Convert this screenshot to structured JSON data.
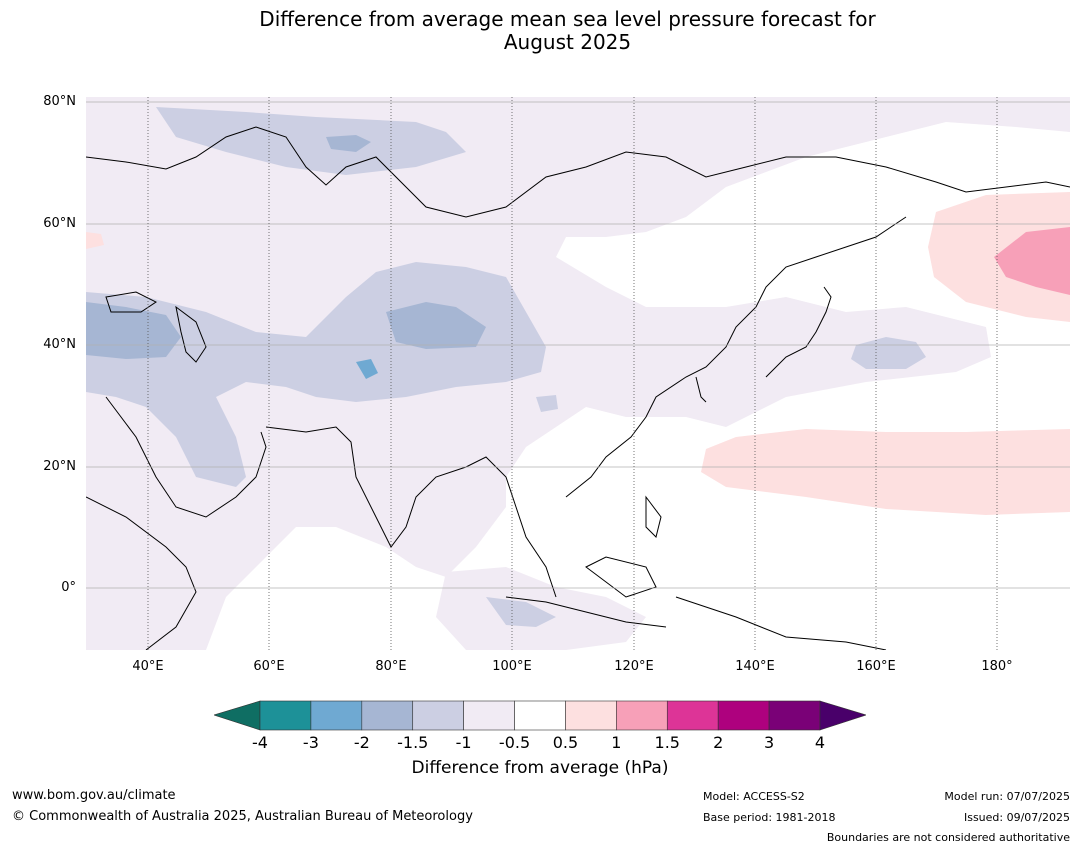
{
  "title": {
    "line1": "Difference from average mean sea level pressure forecast for",
    "line2": "August 2025"
  },
  "map": {
    "lat_labels": [
      "80°N",
      "60°N",
      "40°N",
      "20°N",
      "0°"
    ],
    "lon_labels": [
      "40°E",
      "60°E",
      "80°E",
      "100°E",
      "120°E",
      "140°E",
      "160°E",
      "180°"
    ],
    "extent": {
      "lon_min": 30,
      "lon_max": 192,
      "lat_min": -10,
      "lat_max": 81
    }
  },
  "colorbar": {
    "ticks": [
      "-4",
      "-3",
      "-2",
      "-1.5",
      "-1",
      "-0.5",
      "0.5",
      "1",
      "1.5",
      "2",
      "3",
      "4"
    ],
    "colors": [
      "#0f6e63",
      "#1d9198",
      "#6fa9d2",
      "#a6b6d3",
      "#cccfe3",
      "#f1ebf4",
      "#ffffff",
      "#fde0e0",
      "#f7a0b8",
      "#dd3497",
      "#ae017e",
      "#7a0177",
      "#49006a"
    ],
    "label": "Difference from average (hPa)"
  },
  "footer": {
    "website": "www.bom.gov.au/climate",
    "copyright": "© Commonwealth of Australia 2025, Australian Bureau of Meteorology",
    "model": "Model: ACCESS-S2",
    "base_period": "Base period: 1981-2018",
    "model_run": "Model run: 07/07/2025",
    "issued": "Issued: 09/07/2025",
    "disclaimer": "Boundaries are not considered authoritative"
  }
}
